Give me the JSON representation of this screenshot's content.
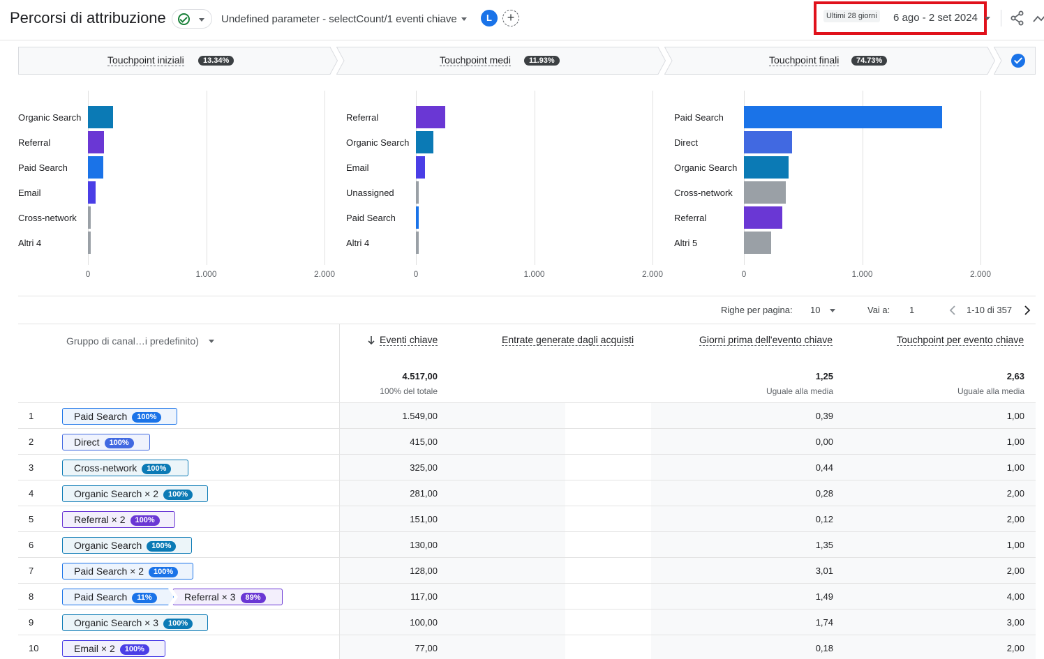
{
  "header": {
    "title": "Percorsi di attribuzione",
    "parameter": "Undefined parameter - selectCount/1 eventi chiave",
    "avatar_letter": "L",
    "add_symbol": "+",
    "date_chip": "Ultimi 28 giorni",
    "date_range": "6 ago - 2 set 2024"
  },
  "steps": [
    {
      "label": "Touchpoint iniziali",
      "pct": "13.34%"
    },
    {
      "label": "Touchpoint medi",
      "pct": "11.93%"
    },
    {
      "label": "Touchpoint finali",
      "pct": "74.73%"
    }
  ],
  "colors": {
    "paid_search": "#1a73e8",
    "direct": "#4169e1",
    "organic_search": "#0b7ab5",
    "referral": "#6a37d4",
    "email": "#4a3ee6",
    "cross_network": "#9aa0a6",
    "other": "#9aa0a6"
  },
  "chart_data": [
    {
      "type": "bar",
      "orientation": "horizontal",
      "categories": [
        "Organic Search",
        "Referral",
        "Paid Search",
        "Email",
        "Cross-network",
        "Altri 4"
      ],
      "values": [
        215,
        135,
        130,
        65,
        25,
        25
      ],
      "bar_colors": [
        "#0b7ab5",
        "#6a37d4",
        "#1a73e8",
        "#4a3ee6",
        "#9aa0a6",
        "#9aa0a6"
      ],
      "ticks": [
        "0",
        "1.000",
        "2.000"
      ],
      "xlim": [
        0,
        2000
      ]
    },
    {
      "type": "bar",
      "orientation": "horizontal",
      "categories": [
        "Referral",
        "Organic Search",
        "Email",
        "Unassigned",
        "Paid Search",
        "Altri 4"
      ],
      "values": [
        250,
        145,
        75,
        20,
        15,
        15
      ],
      "bar_colors": [
        "#6a37d4",
        "#0b7ab5",
        "#4a3ee6",
        "#9aa0a6",
        "#1a73e8",
        "#9aa0a6"
      ],
      "ticks": [
        "0",
        "1.000",
        "2.000"
      ],
      "xlim": [
        0,
        2000
      ]
    },
    {
      "type": "bar",
      "orientation": "horizontal",
      "categories": [
        "Paid Search",
        "Direct",
        "Organic Search",
        "Cross-network",
        "Referral",
        "Altri 5"
      ],
      "values": [
        1675,
        410,
        380,
        355,
        325,
        230
      ],
      "bar_colors": [
        "#1a73e8",
        "#4169e1",
        "#0b7ab5",
        "#9aa0a6",
        "#6a37d4",
        "#9aa0a6"
      ],
      "ticks": [
        "0",
        "1.000",
        "2.000"
      ],
      "xlim": [
        0,
        2000
      ]
    }
  ],
  "pagination": {
    "rows_label": "Righe per pagina:",
    "rows_value": "10",
    "goto_label": "Vai a:",
    "goto_value": "1",
    "range": "1-10 di 357"
  },
  "table": {
    "dimension_header": "Gruppo di canal…i predefinito)",
    "columns": [
      {
        "label": "Eventi chiave",
        "total": "4.517,00",
        "total_sub": "100% del totale"
      },
      {
        "label": "Entrate generate dagli acquisti",
        "total": "",
        "total_sub": ""
      },
      {
        "label": "Giorni prima dell'evento chiave",
        "total": "1,25",
        "total_sub": "Uguale alla media"
      },
      {
        "label": "Touchpoint per evento chiave",
        "total": "2,63",
        "total_sub": "Uguale alla media"
      }
    ],
    "rows": [
      {
        "num": "1",
        "chips": [
          {
            "label": "Paid Search",
            "pct": "100%",
            "color": "#1a73e8",
            "width": 165
          }
        ],
        "eventi": "1.549,00",
        "giorni": "0,39",
        "touchpoint": "1,00"
      },
      {
        "num": "2",
        "chips": [
          {
            "label": "Direct",
            "pct": "100%",
            "color": "#4169e1",
            "width": 126
          }
        ],
        "eventi": "415,00",
        "giorni": "0,00",
        "touchpoint": "1,00"
      },
      {
        "num": "3",
        "chips": [
          {
            "label": "Cross-network",
            "pct": "100%",
            "color": "#0b7ab5",
            "width": 181
          }
        ],
        "eventi": "325,00",
        "giorni": "0,44",
        "touchpoint": "1,00"
      },
      {
        "num": "4",
        "chips": [
          {
            "label": "Organic Search × 2",
            "pct": "100%",
            "color": "#0b7ab5",
            "width": 209
          }
        ],
        "eventi": "281,00",
        "giorni": "0,28",
        "touchpoint": "2,00"
      },
      {
        "num": "5",
        "chips": [
          {
            "label": "Referral × 2",
            "pct": "100%",
            "color": "#6a37d4",
            "width": 162
          }
        ],
        "eventi": "151,00",
        "giorni": "0,12",
        "touchpoint": "2,00"
      },
      {
        "num": "6",
        "chips": [
          {
            "label": "Organic Search",
            "pct": "100%",
            "color": "#0b7ab5",
            "width": 186
          }
        ],
        "eventi": "130,00",
        "giorni": "1,35",
        "touchpoint": "1,00"
      },
      {
        "num": "7",
        "chips": [
          {
            "label": "Paid Search × 2",
            "pct": "100%",
            "color": "#1a73e8",
            "width": 188
          }
        ],
        "eventi": "128,00",
        "giorni": "3,01",
        "touchpoint": "2,00"
      },
      {
        "num": "8",
        "chips": [
          {
            "label": "Paid Search",
            "pct": "11%",
            "color": "#1a73e8",
            "width": 160
          },
          {
            "label": "Referral × 3",
            "pct": "89%",
            "color": "#6a37d4",
            "width": 158
          }
        ],
        "eventi": "117,00",
        "giorni": "1,49",
        "touchpoint": "4,00"
      },
      {
        "num": "9",
        "chips": [
          {
            "label": "Organic Search × 3",
            "pct": "100%",
            "color": "#0b7ab5",
            "width": 209
          }
        ],
        "eventi": "100,00",
        "giorni": "1,74",
        "touchpoint": "3,00"
      },
      {
        "num": "10",
        "chips": [
          {
            "label": "Email × 2",
            "pct": "100%",
            "color": "#4a3ee6",
            "width": 148
          }
        ],
        "eventi": "77,00",
        "giorni": "0,18",
        "touchpoint": "2,00"
      }
    ]
  }
}
